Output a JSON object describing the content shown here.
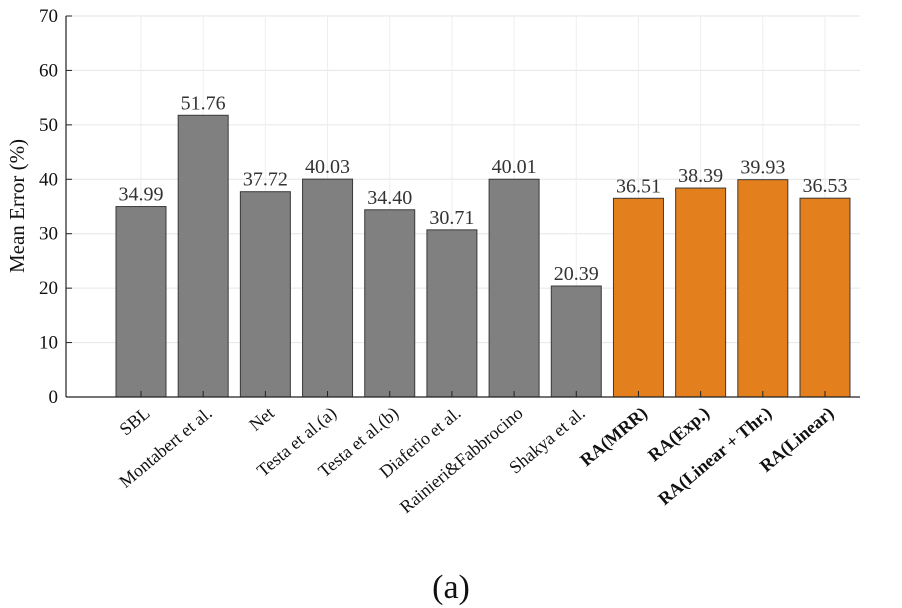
{
  "chart_data": {
    "type": "bar",
    "categories": [
      "SBL",
      "Montabert et al.",
      "Net",
      "Testa et al.(a)",
      "Testa et al.(b)",
      "Diaferio et al.",
      "Rainieri&Fabbrocino",
      "Shakya et al.",
      "RA(MRR)",
      "RA(Exp.)",
      "RA(Linear + Thr.)",
      "RA(Linear)"
    ],
    "values": [
      34.99,
      51.76,
      37.72,
      40.03,
      34.4,
      30.71,
      40.01,
      20.39,
      36.51,
      38.39,
      39.93,
      36.53
    ],
    "value_labels": [
      "34.99",
      "51.76",
      "37.72",
      "40.03",
      "34.40",
      "30.71",
      "40.01",
      "20.39",
      "36.51",
      "38.39",
      "39.93",
      "36.53"
    ],
    "bold_categories": [
      "RA(MRR)",
      "RA(Exp.)",
      "RA(Linear + Thr.)",
      "RA(Linear)"
    ],
    "ylabel": "Mean Error (%)",
    "ylim": [
      0,
      70
    ],
    "yticks": [
      0,
      10,
      20,
      30,
      40,
      50,
      60,
      70
    ],
    "grid": true,
    "colors": {
      "baseline": "#808080",
      "proposed": "#E37F1C",
      "edge": "#3a3a3a"
    },
    "caption": "(a)"
  }
}
